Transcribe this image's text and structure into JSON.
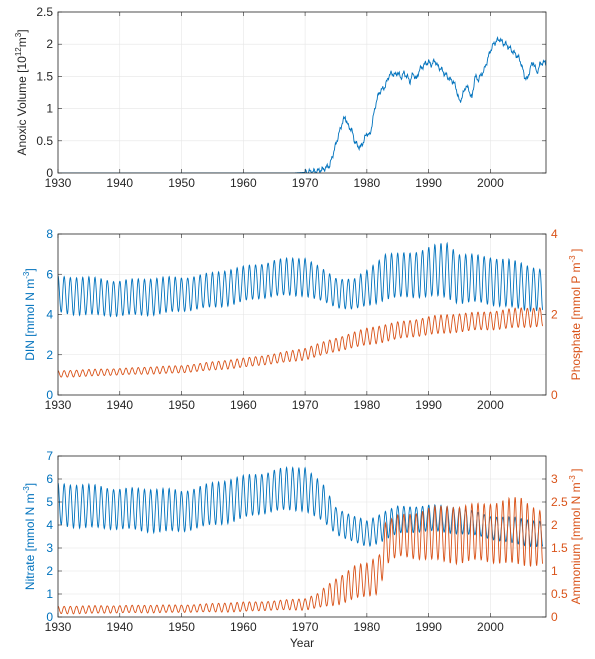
{
  "chart_data": [
    {
      "type": "line",
      "xlabel": "",
      "ylabel_parts": [
        "Anoxic Volume [10",
        "12",
        "m",
        "3",
        "]"
      ],
      "xlim": [
        1930,
        2009
      ],
      "ylim": [
        0,
        2.5
      ],
      "xticks": [
        "1930",
        "1940",
        "1950",
        "1960",
        "1970",
        "1980",
        "1990",
        "2000"
      ],
      "yticks": [
        "0",
        "0.5",
        "1",
        "1.5",
        "2",
        "2.5"
      ],
      "grid": true,
      "series": [
        {
          "color": "#0072BD",
          "x": [
            1930,
            1968,
            1970,
            1972,
            1973,
            1974,
            1975,
            1976,
            1976.5,
            1977,
            1977.5,
            1978,
            1978.5,
            1979,
            1979.5,
            1980,
            1980.5,
            1981,
            1981.5,
            1982,
            1982.5,
            1983,
            1983.5,
            1984,
            1984.5,
            1985,
            1985.5,
            1986,
            1986.5,
            1987,
            1987.5,
            1988,
            1988.5,
            1989,
            1989.5,
            1990,
            1990.5,
            1991,
            1991.5,
            1992,
            1992.5,
            1993,
            1993.5,
            1994,
            1994.5,
            1995,
            1995.5,
            1996,
            1996.5,
            1997,
            1997.5,
            1998,
            1998.5,
            1999,
            1999.5,
            2000,
            2000.5,
            2001,
            2001.5,
            2002,
            2002.5,
            2003,
            2003.5,
            2004,
            2004.5,
            2005,
            2005.5,
            2006,
            2006.5,
            2007,
            2007.5,
            2008,
            2008.5,
            2009
          ],
          "y": [
            0,
            0,
            0.01,
            0.03,
            0.06,
            0.12,
            0.45,
            0.78,
            0.87,
            0.72,
            0.68,
            0.5,
            0.42,
            0.4,
            0.5,
            0.62,
            0.58,
            0.85,
            1.1,
            1.25,
            1.3,
            1.35,
            1.5,
            1.55,
            1.52,
            1.56,
            1.48,
            1.55,
            1.5,
            1.42,
            1.55,
            1.45,
            1.6,
            1.65,
            1.7,
            1.72,
            1.68,
            1.75,
            1.65,
            1.62,
            1.55,
            1.5,
            1.45,
            1.42,
            1.3,
            1.1,
            1.2,
            1.35,
            1.3,
            1.15,
            1.5,
            1.45,
            1.52,
            1.6,
            1.75,
            1.9,
            2.0,
            2.05,
            2.08,
            2.02,
            2.0,
            1.95,
            1.9,
            1.85,
            1.8,
            1.7,
            1.5,
            1.45,
            1.65,
            1.72,
            1.55,
            1.68,
            1.72,
            1.7
          ]
        }
      ]
    },
    {
      "type": "line",
      "xlim": [
        1930,
        2009
      ],
      "ylabel_left": "DIN [mmol N m",
      "ylabel_left_sup": "-3",
      "ylabel_left_end": "]",
      "ylabel_right": "Phosphate [mmol P m",
      "ylabel_right_sup": "-3",
      "ylabel_right_end": " ]",
      "ylim_left": [
        0,
        8
      ],
      "ylim_right": [
        0,
        4
      ],
      "xticks": [
        "1930",
        "1940",
        "1950",
        "1960",
        "1970",
        "1980",
        "1990",
        "2000"
      ],
      "yticks_left": [
        "0",
        "2",
        "4",
        "6",
        "8"
      ],
      "yticks_right": [
        "0",
        "2",
        "4"
      ],
      "grid": true,
      "series": [
        {
          "axis": "left",
          "color": "#0072BD",
          "x": [
            1930,
            1940,
            1950,
            1955,
            1960,
            1965,
            1970,
            1973,
            1975,
            1978,
            1980,
            1983,
            1985,
            1990,
            1993,
            1995,
            2000,
            2005,
            2009
          ],
          "base": [
            5.0,
            4.8,
            5.0,
            5.2,
            5.5,
            5.8,
            5.9,
            5.4,
            5.1,
            5.0,
            5.3,
            5.9,
            5.9,
            6.1,
            6.2,
            5.8,
            5.7,
            5.4,
            5.2
          ],
          "amp": [
            0.9,
            0.9,
            0.85,
            0.85,
            0.85,
            0.9,
            0.9,
            0.8,
            0.75,
            0.75,
            0.85,
            1.1,
            1.1,
            1.2,
            1.3,
            1.2,
            1.2,
            1.1,
            1.0
          ]
        },
        {
          "axis": "right",
          "color": "#D95319",
          "x": [
            1930,
            1940,
            1950,
            1955,
            1960,
            1965,
            1970,
            1975,
            1980,
            1985,
            1990,
            1995,
            2000,
            2005,
            2009
          ],
          "base": [
            0.52,
            0.58,
            0.64,
            0.72,
            0.8,
            0.9,
            1.02,
            1.25,
            1.45,
            1.6,
            1.72,
            1.8,
            1.85,
            1.92,
            1.95
          ],
          "amp": [
            0.08,
            0.08,
            0.09,
            0.1,
            0.11,
            0.12,
            0.14,
            0.17,
            0.2,
            0.21,
            0.22,
            0.22,
            0.23,
            0.23,
            0.23
          ]
        }
      ]
    },
    {
      "type": "line",
      "xlim": [
        1930,
        2009
      ],
      "xlabel": "Year",
      "ylabel_left": "Nitrate [mmol N m",
      "ylabel_left_sup": "-3",
      "ylabel_left_end": "]",
      "ylabel_right": "Ammonium [mmol N m",
      "ylabel_right_sup": "-3",
      "ylabel_right_end": " ]",
      "ylim_left": [
        0,
        7
      ],
      "ylim_right": [
        0,
        3.5
      ],
      "xticks": [
        "1930",
        "1940",
        "1950",
        "1960",
        "1970",
        "1980",
        "1990",
        "2000"
      ],
      "yticks_left": [
        "0",
        "1",
        "2",
        "3",
        "4",
        "5",
        "6",
        "7"
      ],
      "yticks_right": [
        "0",
        "0.5",
        "1",
        "1.5",
        "2",
        "2.5",
        "3"
      ],
      "grid": true,
      "series": [
        {
          "axis": "left",
          "color": "#0072BD",
          "x": [
            1930,
            1940,
            1950,
            1955,
            1960,
            1965,
            1970,
            1973,
            1975,
            1978,
            1980,
            1983,
            1985,
            1990,
            1995,
            2000,
            2005,
            2009
          ],
          "base": [
            4.9,
            4.7,
            4.6,
            4.9,
            5.2,
            5.5,
            5.6,
            4.9,
            4.2,
            3.8,
            3.6,
            4.0,
            4.2,
            4.3,
            4.2,
            3.9,
            3.7,
            3.6
          ],
          "amp": [
            0.9,
            0.9,
            0.9,
            0.9,
            0.9,
            0.9,
            0.9,
            0.8,
            0.6,
            0.55,
            0.55,
            0.6,
            0.6,
            0.55,
            0.55,
            0.5,
            0.55,
            0.55
          ]
        },
        {
          "axis": "right",
          "color": "#D95319",
          "x": [
            1930,
            1940,
            1950,
            1960,
            1965,
            1970,
            1972,
            1975,
            1978,
            1980,
            1982,
            1983,
            1985,
            1990,
            1995,
            2000,
            2005,
            2009
          ],
          "base": [
            0.15,
            0.17,
            0.18,
            0.22,
            0.25,
            0.28,
            0.35,
            0.55,
            0.75,
            0.8,
            0.95,
            1.6,
            1.75,
            1.8,
            1.8,
            1.85,
            1.85,
            1.7
          ],
          "amp": [
            0.08,
            0.08,
            0.08,
            0.1,
            0.1,
            0.12,
            0.15,
            0.3,
            0.35,
            0.35,
            0.4,
            0.45,
            0.45,
            0.55,
            0.6,
            0.65,
            0.7,
            0.55
          ]
        }
      ]
    }
  ]
}
